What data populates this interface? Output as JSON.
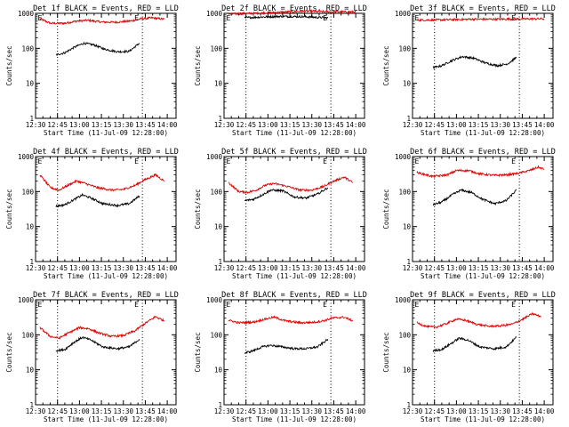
{
  "colors": {
    "events": "#000000",
    "lld": "#e00000",
    "axes": "#000000",
    "background": "#ffffff"
  },
  "common": {
    "ylabel": "Counts/sec",
    "xlabel": "Start Time (11-Jul-09 12:28:00)",
    "xticks": [
      "12:30",
      "12:45",
      "13:00",
      "13:15",
      "13:30",
      "13:45",
      "14:00"
    ],
    "yticks": [
      "1",
      "10",
      "100",
      "1000"
    ],
    "marker": "E"
  },
  "chart_data": [
    {
      "type": "line",
      "title": "Det 1f BLACK = Events, RED = LLD",
      "yscale": "log",
      "ylim": [
        1,
        1000
      ],
      "xlim_min": [
        0,
        96
      ],
      "dotted_lines_min": [
        15,
        73
      ],
      "event_markers_min": [
        3,
        69
      ],
      "series": [
        {
          "values": [
            [
              3,
              700
            ],
            [
              10,
              520
            ],
            [
              20,
              520
            ],
            [
              28,
              600
            ],
            [
              36,
              630
            ],
            [
              46,
              560
            ],
            [
              56,
              560
            ],
            [
              66,
              610
            ],
            [
              72,
              700
            ],
            [
              80,
              740
            ],
            [
              88,
              680
            ]
          ]
        },
        {
          "values": [
            [
              14,
              65
            ],
            [
              20,
              75
            ],
            [
              27,
              110
            ],
            [
              33,
              140
            ],
            [
              40,
              125
            ],
            [
              47,
              95
            ],
            [
              56,
              80
            ],
            [
              64,
              82
            ],
            [
              71,
              140
            ]
          ]
        }
      ]
    },
    {
      "type": "line",
      "title": "Det 2f BLACK = Events, RED = LLD",
      "yscale": "log",
      "ylim": [
        1,
        1000
      ],
      "xlim_min": [
        0,
        96
      ],
      "dotted_lines_min": [
        15,
        73
      ],
      "event_markers_min": [
        3,
        69
      ],
      "series": [
        {
          "values": [
            [
              3,
              950
            ],
            [
              20,
              1000
            ],
            [
              40,
              1080
            ],
            [
              56,
              1150
            ],
            [
              72,
              1100
            ],
            [
              90,
              1100
            ]
          ]
        },
        {
          "values": [
            [
              14,
              750
            ],
            [
              30,
              800
            ],
            [
              40,
              820
            ],
            [
              56,
              800
            ],
            [
              71,
              740
            ]
          ]
        }
      ]
    },
    {
      "type": "line",
      "title": "Det 3f BLACK = Events, RED = LLD",
      "yscale": "log",
      "ylim": [
        1,
        1000
      ],
      "xlim_min": [
        0,
        96
      ],
      "dotted_lines_min": [
        15,
        73
      ],
      "event_markers_min": [
        3,
        69
      ],
      "series": [
        {
          "values": [
            [
              3,
              640
            ],
            [
              20,
              650
            ],
            [
              40,
              680
            ],
            [
              56,
              680
            ],
            [
              72,
              690
            ],
            [
              90,
              700
            ]
          ]
        },
        {
          "values": [
            [
              14,
              28
            ],
            [
              20,
              32
            ],
            [
              27,
              45
            ],
            [
              34,
              58
            ],
            [
              42,
              52
            ],
            [
              50,
              38
            ],
            [
              58,
              32
            ],
            [
              65,
              36
            ],
            [
              71,
              55
            ]
          ]
        }
      ]
    },
    {
      "type": "line",
      "title": "Det 4f BLACK = Events, RED = LLD",
      "yscale": "log",
      "ylim": [
        1,
        1000
      ],
      "xlim_min": [
        0,
        96
      ],
      "dotted_lines_min": [
        15,
        73
      ],
      "event_markers_min": [
        3,
        69
      ],
      "series": [
        {
          "values": [
            [
              3,
              300
            ],
            [
              10,
              130
            ],
            [
              16,
              110
            ],
            [
              22,
              150
            ],
            [
              28,
              200
            ],
            [
              34,
              170
            ],
            [
              42,
              130
            ],
            [
              52,
              110
            ],
            [
              60,
              115
            ],
            [
              68,
              150
            ],
            [
              74,
              210
            ],
            [
              82,
              300
            ],
            [
              88,
              200
            ]
          ]
        },
        {
          "values": [
            [
              14,
              38
            ],
            [
              20,
              42
            ],
            [
              26,
              58
            ],
            [
              32,
              80
            ],
            [
              38,
              65
            ],
            [
              46,
              45
            ],
            [
              56,
              40
            ],
            [
              64,
              45
            ],
            [
              71,
              75
            ]
          ]
        }
      ]
    },
    {
      "type": "line",
      "title": "Det 5f BLACK = Events, RED = LLD",
      "yscale": "log",
      "ylim": [
        1,
        1000
      ],
      "xlim_min": [
        0,
        96
      ],
      "dotted_lines_min": [
        15,
        73
      ],
      "event_markers_min": [
        3,
        69
      ],
      "series": [
        {
          "values": [
            [
              3,
              180
            ],
            [
              10,
              100
            ],
            [
              16,
              95
            ],
            [
              22,
              110
            ],
            [
              28,
              150
            ],
            [
              34,
              170
            ],
            [
              42,
              145
            ],
            [
              52,
              110
            ],
            [
              60,
              110
            ],
            [
              68,
              140
            ],
            [
              74,
              190
            ],
            [
              82,
              260
            ],
            [
              88,
              180
            ]
          ]
        },
        {
          "values": [
            [
              14,
              55
            ],
            [
              20,
              60
            ],
            [
              26,
              80
            ],
            [
              32,
              110
            ],
            [
              40,
              105
            ],
            [
              48,
              70
            ],
            [
              56,
              65
            ],
            [
              64,
              85
            ],
            [
              71,
              130
            ]
          ]
        }
      ]
    },
    {
      "type": "line",
      "title": "Det 6f BLACK = Events, RED = LLD",
      "yscale": "log",
      "ylim": [
        1,
        1000
      ],
      "xlim_min": [
        0,
        96
      ],
      "dotted_lines_min": [
        15,
        73
      ],
      "event_markers_min": [
        3,
        69
      ],
      "series": [
        {
          "values": [
            [
              3,
              350
            ],
            [
              14,
              270
            ],
            [
              24,
              300
            ],
            [
              30,
              400
            ],
            [
              38,
              400
            ],
            [
              46,
              320
            ],
            [
              56,
              290
            ],
            [
              64,
              300
            ],
            [
              72,
              330
            ],
            [
              80,
              400
            ],
            [
              86,
              500
            ],
            [
              90,
              430
            ]
          ]
        },
        {
          "values": [
            [
              14,
              42
            ],
            [
              20,
              50
            ],
            [
              27,
              80
            ],
            [
              33,
              110
            ],
            [
              40,
              95
            ],
            [
              48,
              60
            ],
            [
              56,
              45
            ],
            [
              64,
              55
            ],
            [
              71,
              110
            ]
          ]
        }
      ]
    },
    {
      "type": "line",
      "title": "Det 7f BLACK = Events, RED = LLD",
      "yscale": "log",
      "ylim": [
        1,
        1000
      ],
      "xlim_min": [
        0,
        96
      ],
      "dotted_lines_min": [
        15,
        73
      ],
      "event_markers_min": [
        3,
        69
      ],
      "series": [
        {
          "values": [
            [
              3,
              160
            ],
            [
              10,
              90
            ],
            [
              16,
              80
            ],
            [
              22,
              110
            ],
            [
              30,
              160
            ],
            [
              36,
              150
            ],
            [
              44,
              110
            ],
            [
              52,
              90
            ],
            [
              60,
              95
            ],
            [
              68,
              130
            ],
            [
              74,
              200
            ],
            [
              82,
              330
            ],
            [
              88,
              250
            ]
          ]
        },
        {
          "values": [
            [
              14,
              35
            ],
            [
              20,
              38
            ],
            [
              26,
              60
            ],
            [
              32,
              85
            ],
            [
              38,
              70
            ],
            [
              46,
              45
            ],
            [
              56,
              40
            ],
            [
              64,
              45
            ],
            [
              71,
              75
            ]
          ]
        }
      ]
    },
    {
      "type": "line",
      "title": "Det 8f BLACK = Events, RED = LLD",
      "yscale": "log",
      "ylim": [
        1,
        1000
      ],
      "xlim_min": [
        0,
        96
      ],
      "dotted_lines_min": [
        15,
        73
      ],
      "event_markers_min": [
        3,
        69
      ],
      "series": [
        {
          "values": [
            [
              3,
              260
            ],
            [
              10,
              220
            ],
            [
              20,
              230
            ],
            [
              28,
              280
            ],
            [
              34,
              320
            ],
            [
              42,
              250
            ],
            [
              52,
              220
            ],
            [
              60,
              225
            ],
            [
              68,
              250
            ],
            [
              74,
              300
            ],
            [
              82,
              320
            ],
            [
              88,
              250
            ]
          ]
        },
        {
          "values": [
            [
              14,
              30
            ],
            [
              20,
              35
            ],
            [
              26,
              45
            ],
            [
              32,
              50
            ],
            [
              40,
              45
            ],
            [
              48,
              40
            ],
            [
              56,
              40
            ],
            [
              64,
              45
            ],
            [
              71,
              75
            ]
          ]
        }
      ]
    },
    {
      "type": "line",
      "title": "Det 9f BLACK = Events, RED = LLD",
      "yscale": "log",
      "ylim": [
        1,
        1000
      ],
      "xlim_min": [
        0,
        96
      ],
      "dotted_lines_min": [
        15,
        73
      ],
      "event_markers_min": [
        3,
        69
      ],
      "series": [
        {
          "values": [
            [
              3,
              220
            ],
            [
              10,
              170
            ],
            [
              16,
              165
            ],
            [
              22,
              200
            ],
            [
              30,
              280
            ],
            [
              36,
              260
            ],
            [
              44,
              200
            ],
            [
              52,
              175
            ],
            [
              60,
              180
            ],
            [
              68,
              200
            ],
            [
              74,
              260
            ],
            [
              82,
              400
            ],
            [
              88,
              330
            ]
          ]
        },
        {
          "values": [
            [
              14,
              35
            ],
            [
              20,
              38
            ],
            [
              26,
              55
            ],
            [
              32,
              80
            ],
            [
              38,
              70
            ],
            [
              46,
              45
            ],
            [
              56,
              40
            ],
            [
              64,
              45
            ],
            [
              71,
              85
            ]
          ]
        }
      ]
    }
  ]
}
